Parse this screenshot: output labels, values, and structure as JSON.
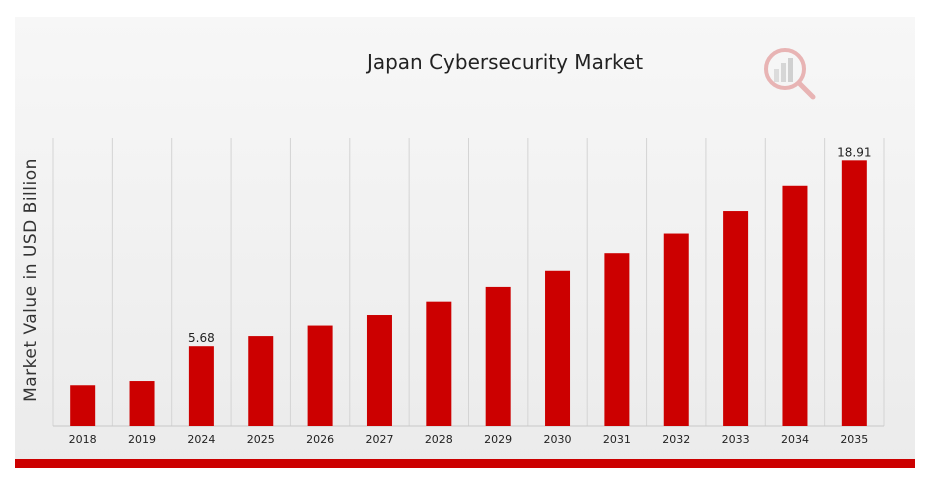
{
  "chart_data": {
    "type": "bar",
    "title": "Japan Cybersecurity Market",
    "xlabel": "",
    "ylabel": "Market Value in USD Billion",
    "categories": [
      "2018",
      "2019",
      "2024",
      "2025",
      "2026",
      "2027",
      "2028",
      "2029",
      "2030",
      "2031",
      "2032",
      "2033",
      "2034",
      "2035"
    ],
    "values": [
      2.9,
      3.2,
      5.68,
      6.4,
      7.15,
      7.9,
      8.85,
      9.9,
      11.05,
      12.3,
      13.7,
      15.3,
      17.1,
      18.91
    ],
    "data_labels": {
      "2024": "5.68",
      "2035": "18.91"
    },
    "ylim": [
      0,
      20.5
    ],
    "grid": "vertical",
    "bar_color": "#cc0000"
  },
  "brand": {
    "accent": "#cc0000",
    "logo_icon": "magnifier-bar-chart-icon"
  }
}
